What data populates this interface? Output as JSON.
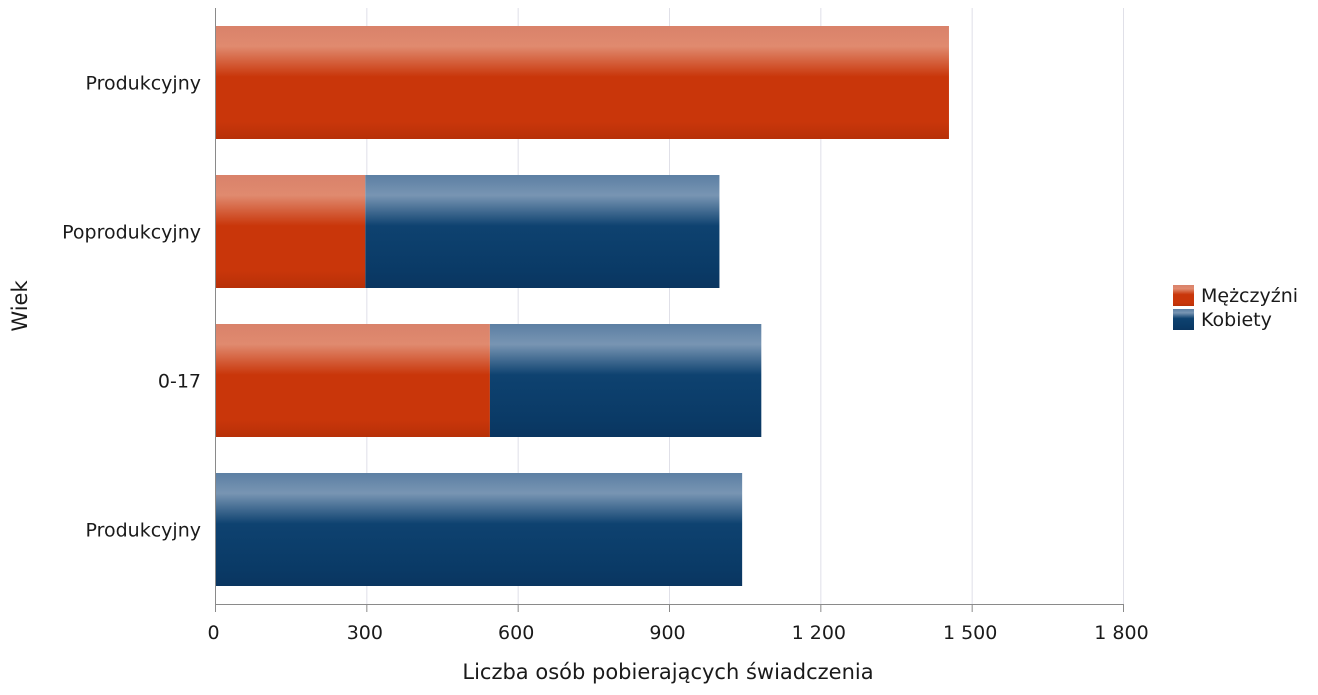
{
  "chart_data": {
    "type": "bar",
    "orientation": "horizontal",
    "stacked": true,
    "categories": [
      "Produkcyjny",
      "Poprodukcyjny",
      "0-17",
      "Produkcyjny"
    ],
    "series": [
      {
        "name": "Mężczyźni",
        "values": [
          1455,
          298,
          545,
          0
        ],
        "color": "#c9360a"
      },
      {
        "name": "Kobiety",
        "values": [
          0,
          702,
          538,
          1045
        ],
        "color": "#0e4270"
      }
    ],
    "xlabel": "Liczba osób pobierających świadczenia",
    "ylabel": "Wiek",
    "xlim": [
      0,
      1800
    ],
    "xticks": [
      0,
      300,
      600,
      900,
      1200,
      1500,
      1800
    ],
    "xtick_labels": [
      "0",
      "300",
      "600",
      "900",
      "1 200",
      "1 500",
      "1 800"
    ],
    "grid": "vertical",
    "legend": "right"
  }
}
